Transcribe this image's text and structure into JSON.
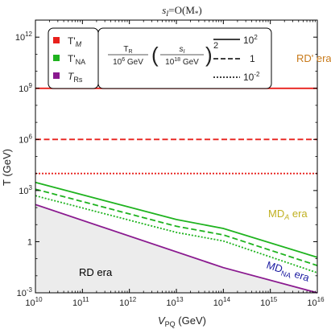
{
  "chart_data": {
    "type": "line",
    "title_lhs": "s",
    "title_sub": "I",
    "title_rhs": "=O(M",
    "title_star": "*",
    "title_close": ")",
    "xlabel_main": "V",
    "xlabel_sub": "PQ",
    "xlabel_unit": " (GeV)",
    "ylabel": "T (GeV)",
    "xscale": "log",
    "yscale": "log",
    "xlim": [
      10000000000.0,
      1e+16
    ],
    "ylim": [
      0.001,
      10000000000000.0
    ],
    "grid": false,
    "x_ticks": [
      {
        "exp": "10"
      },
      {
        "exp": "11"
      },
      {
        "exp": "12"
      },
      {
        "exp": "13"
      },
      {
        "exp": "14"
      },
      {
        "exp": "15"
      },
      {
        "exp": "16"
      }
    ],
    "y_ticks": [
      {
        "value": 0.001,
        "base": "10",
        "exp": "-3"
      },
      {
        "value": 1,
        "base": "1",
        "exp": ""
      },
      {
        "value": 1000,
        "base": "10",
        "exp": "3"
      },
      {
        "value": 1000000,
        "base": "10",
        "exp": "6"
      },
      {
        "value": 1000000000,
        "base": "10",
        "exp": "9"
      },
      {
        "value": 1000000000000,
        "base": "10",
        "exp": "12"
      }
    ],
    "colors": {
      "TM": "#e8201c",
      "TNA": "#1fb31f",
      "TRs": "#8a1a8f",
      "fill": "#ececec"
    },
    "series": [
      {
        "key": "TM",
        "style": "solid",
        "x": [
          10000000000.0,
          1e+16
        ],
        "y": [
          1000000000.0,
          1000000000.0
        ]
      },
      {
        "key": "TM",
        "style": "dashed",
        "x": [
          10000000000.0,
          1e+16
        ],
        "y": [
          1000000.0,
          1000000.0
        ]
      },
      {
        "key": "TM",
        "style": "dotted",
        "x": [
          10000000000.0,
          1e+16
        ],
        "y": [
          10000.0,
          10000.0
        ]
      },
      {
        "key": "TNA",
        "style": "solid",
        "x": [
          10000000000.0,
          10000000000000.0,
          100000000000000.0,
          1e+16
        ],
        "y": [
          3000,
          20,
          6,
          0.12
        ]
      },
      {
        "key": "TNA",
        "style": "dashed",
        "x": [
          10000000000.0,
          10000000000000.0,
          100000000000000.0,
          1e+16
        ],
        "y": [
          1200,
          8,
          2.5,
          0.04
        ]
      },
      {
        "key": "TNA",
        "style": "dotted",
        "x": [
          10000000000.0,
          10000000000000.0,
          100000000000000.0,
          1e+16
        ],
        "y": [
          500,
          3.5,
          1.1,
          0.015
        ]
      },
      {
        "key": "TRs",
        "style": "solid",
        "x": [
          10000000000.0,
          100000000000000.0,
          1e+16
        ],
        "y": [
          150,
          0.03,
          0.001
        ]
      }
    ],
    "legend_series": [
      {
        "key": "TM",
        "main": "T'",
        "sub": "M"
      },
      {
        "key": "TNA",
        "main": "T'",
        "sub": "NA"
      },
      {
        "key": "TRs",
        "main": "T",
        "sub": "Rs"
      }
    ],
    "legend_styles": {
      "frac1_num": "T",
      "frac1_num_sub": "R",
      "frac1_den": "10",
      "frac1_den_exp": "6",
      "frac1_den_unit": " GeV",
      "frac2_num": "s",
      "frac2_num_sub": "I",
      "frac2_den": "10",
      "frac2_den_exp": "18",
      "frac2_den_unit": " GeV",
      "power": "2",
      "entries": [
        {
          "style": "solid",
          "base": "10",
          "exp": "2"
        },
        {
          "style": "dashed",
          "base": "1",
          "exp": ""
        },
        {
          "style": "dotted",
          "base": "10",
          "exp": "-2"
        }
      ]
    },
    "annotations": [
      {
        "id": "rdprime",
        "text": "RD' era",
        "sub": "",
        "tail": "",
        "color": "#c87a1a"
      },
      {
        "id": "mda",
        "text": "MD",
        "sub": "A",
        "tail": " era",
        "color": "#c0b020"
      },
      {
        "id": "mdna",
        "text": "MD",
        "sub": "NA",
        "tail": " era",
        "color": "#1a1aa0"
      },
      {
        "id": "rd",
        "text": "RD era",
        "sub": "",
        "tail": "",
        "color": "#000000"
      }
    ]
  }
}
